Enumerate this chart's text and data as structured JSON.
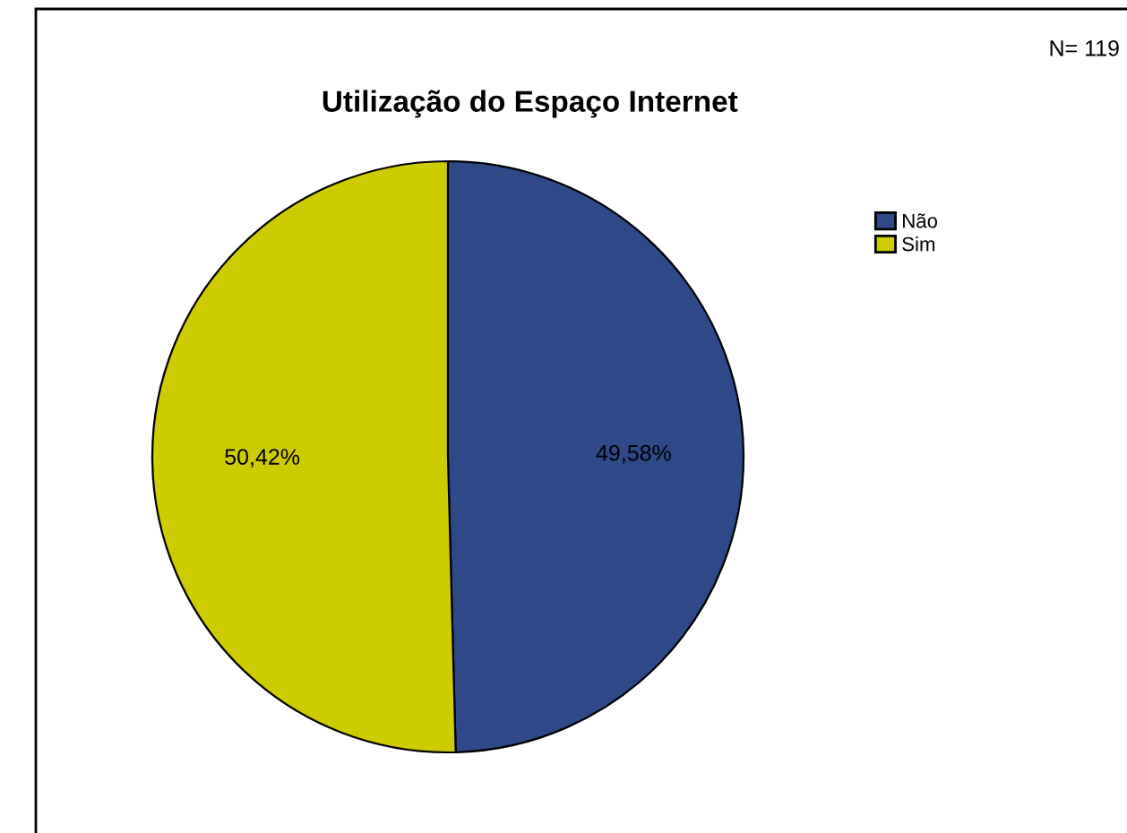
{
  "chart_data": {
    "type": "pie",
    "title": "Utilização do Espaço Internet",
    "categories": [
      "Não",
      "Sim"
    ],
    "values": [
      49.58,
      50.42
    ],
    "colors": [
      "#2f4888",
      "#cccc00"
    ],
    "value_labels": [
      "49,58%",
      "50,42%"
    ],
    "legend": "top right",
    "annotations": [
      "N= 119"
    ]
  }
}
